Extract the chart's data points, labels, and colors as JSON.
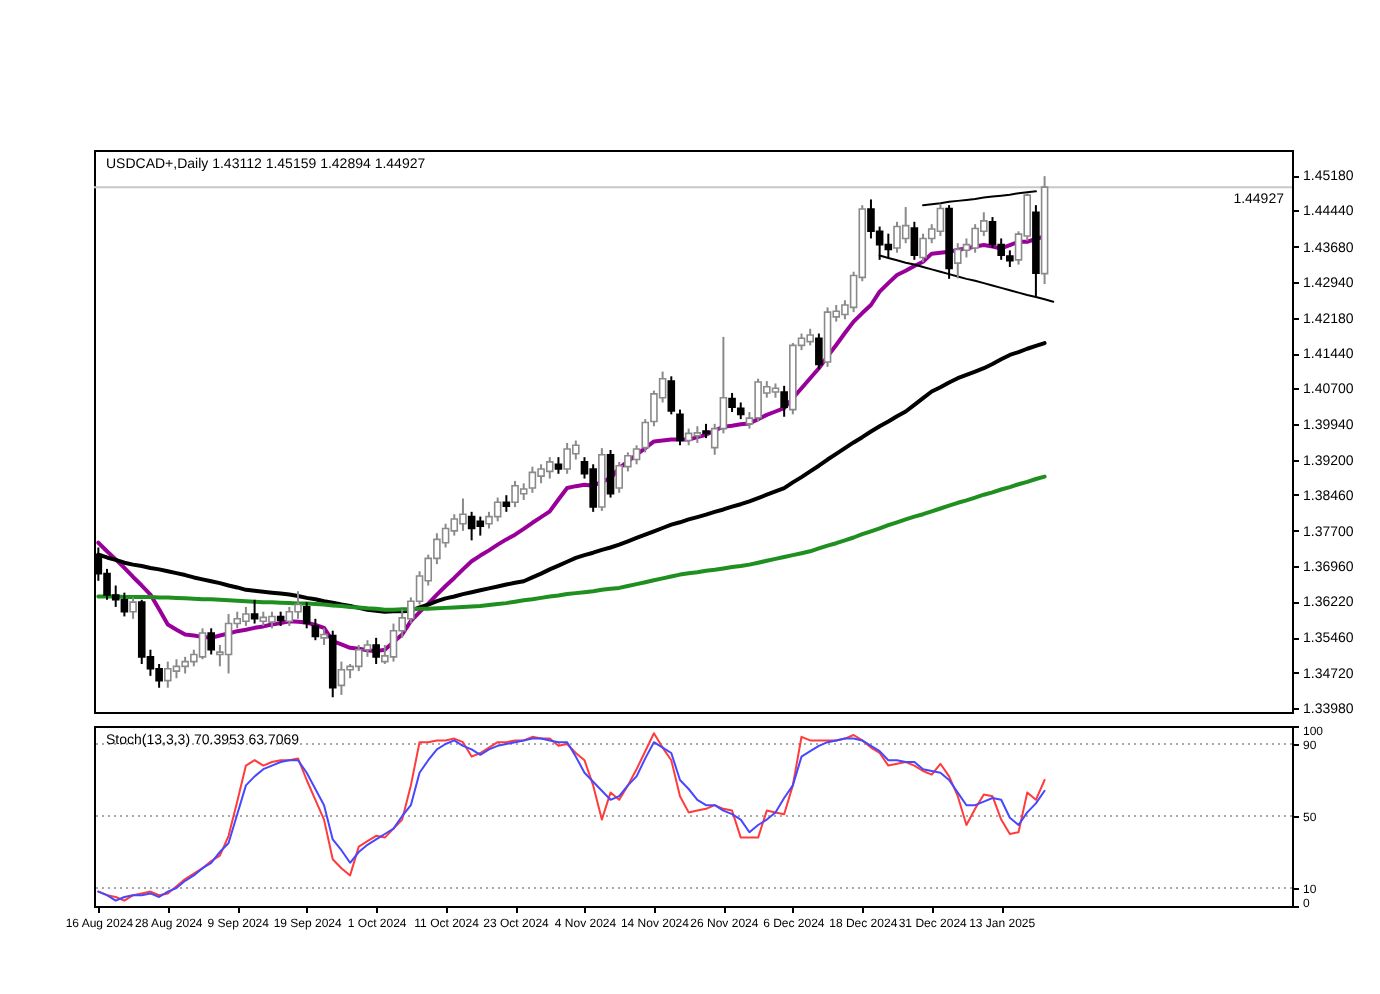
{
  "chart_data": [
    {
      "type": "candlestick",
      "title": "USDCAD+,Daily 1.43112 1.45159 1.42894 1.44927",
      "tick_labels": "y",
      "categories": [
        null,
        null,
        null,
        null,
        null,
        null,
        null,
        null,
        null,
        null,
        null,
        null,
        null,
        null,
        null,
        null,
        null,
        null,
        null,
        null,
        null,
        null,
        null,
        null,
        null,
        null,
        null,
        null,
        null,
        null,
        null,
        null,
        null,
        null,
        null,
        null,
        null,
        null,
        null,
        null,
        null,
        null,
        null,
        null,
        null,
        null,
        null,
        null,
        null,
        null,
        null,
        null,
        null,
        null,
        null,
        null,
        null,
        null,
        null,
        null,
        null,
        null,
        null,
        null,
        null,
        null,
        null,
        null,
        null,
        null,
        null,
        null,
        null,
        null,
        null,
        null,
        null,
        null,
        null,
        null,
        null,
        null,
        null,
        null,
        null,
        null,
        null,
        null,
        null,
        null,
        null,
        null,
        null,
        null,
        null,
        null,
        null,
        null,
        null,
        null,
        null,
        null,
        null,
        null,
        null,
        null,
        null,
        null,
        null,
        null,
        null,
        null,
        null,
        null,
        null,
        null,
        null,
        null,
        null,
        null,
        null,
        null,
        null,
        null,
        null,
        null,
        null,
        null,
        null,
        null,
        null,
        null,
        null,
        null,
        null,
        null,
        null,
        null
      ],
      "ohlc": [
        [
          1.372,
          1.3735,
          1.3665,
          1.368
        ],
        [
          1.368,
          1.369,
          1.3625,
          1.3635
        ],
        [
          1.3635,
          1.3655,
          1.361,
          1.3625
        ],
        [
          1.3625,
          1.364,
          1.359,
          1.36
        ],
        [
          1.36,
          1.363,
          1.3585,
          1.362
        ],
        [
          1.362,
          1.3625,
          1.349,
          1.3505
        ],
        [
          1.3505,
          1.352,
          1.3465,
          1.348
        ],
        [
          1.348,
          1.349,
          1.344,
          1.3455
        ],
        [
          1.3455,
          1.3495,
          1.344,
          1.348
        ],
        [
          1.3475,
          1.35,
          1.346,
          1.3485
        ],
        [
          1.3485,
          1.3505,
          1.347,
          1.3495
        ],
        [
          1.3495,
          1.352,
          1.3485,
          1.351
        ],
        [
          1.3505,
          1.3565,
          1.35,
          1.3555
        ],
        [
          1.3555,
          1.3565,
          1.351,
          1.352
        ],
        [
          1.351,
          1.353,
          1.3485,
          1.3515
        ],
        [
          1.351,
          1.3595,
          1.347,
          1.3575
        ],
        [
          1.3575,
          1.36,
          1.3565,
          1.3585
        ],
        [
          1.358,
          1.361,
          1.357,
          1.3595
        ],
        [
          1.3595,
          1.3625,
          1.3575,
          1.3585
        ],
        [
          1.358,
          1.36,
          1.357,
          1.3588
        ],
        [
          1.3578,
          1.36,
          1.3565,
          1.359
        ],
        [
          1.359,
          1.36,
          1.357,
          1.3582
        ],
        [
          1.358,
          1.361,
          1.357,
          1.36
        ],
        [
          1.36,
          1.3643,
          1.3585,
          1.3615
        ],
        [
          1.361,
          1.362,
          1.3565,
          1.3575
        ],
        [
          1.357,
          1.3585,
          1.354,
          1.3548
        ],
        [
          1.3545,
          1.3565,
          1.353,
          1.3552
        ],
        [
          1.355,
          1.356,
          1.342,
          1.344
        ],
        [
          1.3445,
          1.3495,
          1.3425,
          1.3478
        ],
        [
          1.3478,
          1.349,
          1.346,
          1.3485
        ],
        [
          1.3485,
          1.353,
          1.3475,
          1.352
        ],
        [
          1.352,
          1.354,
          1.3505,
          1.353
        ],
        [
          1.353,
          1.3545,
          1.349,
          1.3505
        ],
        [
          1.3495,
          1.353,
          1.349,
          1.3507
        ],
        [
          1.3505,
          1.3575,
          1.3495,
          1.356
        ],
        [
          1.356,
          1.3605,
          1.3545,
          1.3587
        ],
        [
          1.3585,
          1.363,
          1.3575,
          1.3622
        ],
        [
          1.3622,
          1.3685,
          1.3615,
          1.3675
        ],
        [
          1.3665,
          1.372,
          1.3655,
          1.3712
        ],
        [
          1.3712,
          1.3765,
          1.37,
          1.3752
        ],
        [
          1.3745,
          1.3785,
          1.3735,
          1.3775
        ],
        [
          1.377,
          1.3805,
          1.376,
          1.3795
        ],
        [
          1.3785,
          1.3838,
          1.377,
          1.3805
        ],
        [
          1.38,
          1.381,
          1.375,
          1.3775
        ],
        [
          1.379,
          1.38,
          1.376,
          1.378
        ],
        [
          1.3785,
          1.381,
          1.3775,
          1.38
        ],
        [
          1.38,
          1.384,
          1.379,
          1.383
        ],
        [
          1.383,
          1.3845,
          1.381,
          1.3822
        ],
        [
          1.383,
          1.3875,
          1.382,
          1.3865
        ],
        [
          1.3848,
          1.387,
          1.3835,
          1.3858
        ],
        [
          1.386,
          1.3905,
          1.385,
          1.3893
        ],
        [
          1.3885,
          1.391,
          1.387,
          1.39
        ],
        [
          1.3895,
          1.3925,
          1.388,
          1.3915
        ],
        [
          1.391,
          1.3925,
          1.389,
          1.39
        ],
        [
          1.39,
          1.3955,
          1.389,
          1.3942
        ],
        [
          1.3932,
          1.396,
          1.392,
          1.395
        ],
        [
          1.3915,
          1.3925,
          1.388,
          1.389
        ],
        [
          1.39,
          1.391,
          1.381,
          1.382
        ],
        [
          1.382,
          1.3944,
          1.3812,
          1.393
        ],
        [
          1.393,
          1.394,
          1.384,
          1.3848
        ],
        [
          1.386,
          1.3915,
          1.385,
          1.3907
        ],
        [
          1.3905,
          1.3935,
          1.3895,
          1.3928
        ],
        [
          1.392,
          1.395,
          1.391,
          1.3942
        ],
        [
          1.3945,
          1.4005,
          1.3935,
          1.3998
        ],
        [
          1.4,
          1.4065,
          1.399,
          1.4058
        ],
        [
          1.405,
          1.4105,
          1.404,
          1.409
        ],
        [
          1.4085,
          1.4095,
          1.4015,
          1.4022
        ],
        [
          1.4015,
          1.4025,
          1.395,
          1.396
        ],
        [
          1.396,
          1.3985,
          1.395,
          1.3975
        ],
        [
          1.397,
          1.399,
          1.3955,
          1.3976
        ],
        [
          1.398,
          1.3995,
          1.3965,
          1.3975
        ],
        [
          1.3945,
          1.3995,
          1.393,
          1.3985
        ],
        [
          1.3985,
          1.4178,
          1.3975,
          1.405
        ],
        [
          1.4048,
          1.406,
          1.402,
          1.403
        ],
        [
          1.4028,
          1.404,
          1.4005,
          1.4015
        ],
        [
          1.3995,
          1.402,
          1.3985,
          1.4007
        ],
        [
          1.4008,
          1.409,
          1.4,
          1.4083
        ],
        [
          1.406,
          1.4085,
          1.405,
          1.4073
        ],
        [
          1.4062,
          1.408,
          1.405,
          1.407
        ],
        [
          1.4062,
          1.4075,
          1.401,
          1.403
        ],
        [
          1.4025,
          1.4165,
          1.4015,
          1.416
        ],
        [
          1.416,
          1.4185,
          1.415,
          1.4175
        ],
        [
          1.4168,
          1.4195,
          1.416,
          1.4182
        ],
        [
          1.4175,
          1.4185,
          1.411,
          1.412
        ],
        [
          1.4125,
          1.424,
          1.4115,
          1.423
        ],
        [
          1.422,
          1.4245,
          1.421,
          1.4232
        ],
        [
          1.4225,
          1.4255,
          1.4215,
          1.4245
        ],
        [
          1.424,
          1.4315,
          1.423,
          1.4307
        ],
        [
          1.4303,
          1.4455,
          1.4295,
          1.4447
        ],
        [
          1.4447,
          1.4467,
          1.4385,
          1.44
        ],
        [
          1.44,
          1.441,
          1.434,
          1.4372
        ],
        [
          1.4372,
          1.4395,
          1.4345,
          1.4362
        ],
        [
          1.4365,
          1.442,
          1.4355,
          1.441
        ],
        [
          1.4385,
          1.4451,
          1.4375,
          1.4412
        ],
        [
          1.4407,
          1.442,
          1.434,
          1.435
        ],
        [
          1.4345,
          1.4395,
          1.4335,
          1.4385
        ],
        [
          1.4385,
          1.4415,
          1.4375,
          1.4405
        ],
        [
          1.44,
          1.4458,
          1.439,
          1.4448
        ],
        [
          1.4448,
          1.4455,
          1.43,
          1.4322
        ],
        [
          1.4333,
          1.4375,
          1.4301,
          1.4362
        ],
        [
          1.436,
          1.4385,
          1.4345,
          1.4372
        ],
        [
          1.4365,
          1.4415,
          1.4355,
          1.4406
        ],
        [
          1.44,
          1.444,
          1.439,
          1.4422
        ],
        [
          1.442,
          1.443,
          1.4365,
          1.4373
        ],
        [
          1.4372,
          1.4385,
          1.434,
          1.435
        ],
        [
          1.4348,
          1.436,
          1.4325,
          1.4338
        ],
        [
          1.434,
          1.44,
          1.433,
          1.4394
        ],
        [
          1.439,
          1.448,
          1.438,
          1.4476
        ],
        [
          1.444,
          1.4455,
          1.4262,
          1.4312
        ],
        [
          1.4311,
          1.4516,
          1.4289,
          1.4493
        ],
        null,
        null,
        null,
        null,
        null,
        null,
        null,
        null,
        null,
        null,
        null,
        null,
        null,
        null,
        null,
        null,
        null,
        null,
        null,
        null,
        null,
        null,
        null,
        null,
        null,
        null,
        null,
        null
      ],
      "series": [
        {
          "type": "line",
          "color": "#990099",
          "values": [
            1.3745,
            1.3727,
            1.371,
            1.3692,
            1.3673,
            1.3655,
            1.3636,
            1.3605,
            1.3573,
            1.3562,
            1.3552,
            1.355,
            1.3547,
            1.3545,
            1.355,
            1.3554,
            1.3559,
            1.3562,
            1.3566,
            1.3569,
            1.3573,
            1.3576,
            1.358,
            1.3579,
            1.3577,
            1.3572,
            1.3566,
            1.3538,
            1.3531,
            1.3524,
            1.3522,
            1.3519,
            1.3517,
            1.352,
            1.3536,
            1.3552,
            1.358,
            1.3599,
            1.3617,
            1.3636,
            1.3654,
            1.3671,
            1.3689,
            1.3706,
            1.3718,
            1.3729,
            1.3741,
            1.3752,
            1.3762,
            1.3774,
            1.3787,
            1.3799,
            1.3811,
            1.3836,
            1.386,
            1.3864,
            1.3867,
            1.3865,
            1.3873,
            1.3881,
            1.3902,
            1.3916,
            1.393,
            1.3944,
            1.3958,
            1.396,
            1.3962,
            1.3962,
            1.3962,
            1.3967,
            1.3972,
            1.3981,
            1.3989,
            1.3991,
            1.3994,
            1.3996,
            1.4005,
            1.4014,
            1.4021,
            1.4028,
            1.4049,
            1.407,
            1.4091,
            1.4112,
            1.4137,
            1.4161,
            1.4186,
            1.421,
            1.4228,
            1.4245,
            1.4273,
            1.4291,
            1.4308,
            1.4317,
            1.4327,
            1.4336,
            1.4353,
            1.4355,
            1.4357,
            1.4361,
            1.4364,
            1.4368,
            1.4371,
            1.4368,
            1.4364,
            1.4371,
            1.4378,
            1.4378,
            1.4384,
            1.4389,
            null,
            null,
            null,
            null,
            null,
            null,
            null,
            null,
            null,
            null,
            null,
            null,
            null,
            null,
            null,
            null,
            null,
            null,
            null,
            null,
            null,
            null,
            null,
            null,
            null,
            null,
            null,
            null
          ]
        },
        {
          "type": "line",
          "color": "#000000",
          "values": [
            1.372,
            1.3714,
            1.3709,
            1.3703,
            1.3699,
            1.3696,
            1.3692,
            1.3689,
            1.3685,
            1.3681,
            1.3677,
            1.3672,
            1.3668,
            1.3664,
            1.366,
            1.3655,
            1.3651,
            1.3646,
            1.3644,
            1.3642,
            1.364,
            1.3638,
            1.3636,
            1.3633,
            1.3629,
            1.3626,
            1.3622,
            1.3619,
            1.3615,
            1.3612,
            1.3608,
            1.3604,
            1.3602,
            1.36,
            1.3601,
            1.3601,
            1.3602,
            1.3609,
            1.3615,
            1.3622,
            1.3628,
            1.3632,
            1.3637,
            1.3641,
            1.3645,
            1.3649,
            1.3653,
            1.3657,
            1.3661,
            1.3664,
            1.3672,
            1.368,
            1.3689,
            1.3697,
            1.3705,
            1.3713,
            1.3719,
            1.3724,
            1.373,
            1.3735,
            1.3741,
            1.3748,
            1.3755,
            1.3762,
            1.3769,
            1.3776,
            1.3783,
            1.3788,
            1.3794,
            1.3799,
            1.3804,
            1.381,
            1.3815,
            1.3821,
            1.3826,
            1.3832,
            1.3839,
            1.3846,
            1.3853,
            1.386,
            1.3872,
            1.3883,
            1.3895,
            1.3907,
            1.392,
            1.3932,
            1.3944,
            1.3956,
            1.3967,
            1.3979,
            1.399,
            1.4,
            1.4011,
            1.4021,
            1.4035,
            1.4049,
            1.4063,
            1.4072,
            1.4082,
            1.4091,
            1.4098,
            1.4105,
            1.4112,
            1.4121,
            1.4131,
            1.414,
            1.4146,
            1.4153,
            1.4159,
            1.4165,
            null,
            null,
            null,
            null,
            null,
            null,
            null,
            null,
            null,
            null,
            null,
            null,
            null,
            null,
            null,
            null,
            null,
            null,
            null,
            null,
            null,
            null,
            null,
            null,
            null,
            null,
            null,
            null
          ]
        },
        {
          "type": "line",
          "color": "#1f8f1f",
          "values": [
            1.3632,
            1.3632,
            1.3632,
            1.3631,
            1.3631,
            1.3631,
            1.3631,
            1.363,
            1.363,
            1.3629,
            1.3628,
            1.3627,
            1.3626,
            1.3626,
            1.3625,
            1.3624,
            1.3623,
            1.3622,
            1.3621,
            1.362,
            1.362,
            1.3619,
            1.3618,
            1.3617,
            1.3617,
            1.3616,
            1.3615,
            1.3613,
            1.3612,
            1.361,
            1.3609,
            1.3607,
            1.3606,
            1.3604,
            1.3604,
            1.3605,
            1.3605,
            1.3606,
            1.3606,
            1.3607,
            1.3608,
            1.3609,
            1.361,
            1.3611,
            1.3612,
            1.3614,
            1.3616,
            1.3618,
            1.3621,
            1.3624,
            1.3626,
            1.3629,
            1.3632,
            1.3634,
            1.3637,
            1.3639,
            1.3641,
            1.3643,
            1.3646,
            1.3648,
            1.365,
            1.3654,
            1.3658,
            1.3662,
            1.3666,
            1.367,
            1.3674,
            1.3678,
            1.3681,
            1.3683,
            1.3686,
            1.3688,
            1.3691,
            1.3694,
            1.3696,
            1.3699,
            1.3703,
            1.3707,
            1.3711,
            1.3715,
            1.3719,
            1.3723,
            1.3727,
            1.3733,
            1.3739,
            1.3744,
            1.375,
            1.3756,
            1.3763,
            1.3769,
            1.3775,
            1.3782,
            1.3788,
            1.3794,
            1.38,
            1.3805,
            1.3811,
            1.3817,
            1.3823,
            1.3829,
            1.3834,
            1.384,
            1.3846,
            1.3851,
            1.3857,
            1.3862,
            1.3868,
            1.3873,
            1.3879,
            1.3884,
            null,
            null,
            null,
            null,
            null,
            null,
            null,
            null,
            null,
            null,
            null,
            null,
            null,
            null,
            null,
            null,
            null,
            null,
            null,
            null,
            null,
            null,
            null,
            null,
            null,
            null,
            null,
            null
          ]
        },
        {
          "type": "line",
          "color": "#000000",
          "values": [
            null,
            null,
            null,
            null,
            null,
            null,
            null,
            null,
            null,
            null,
            null,
            null,
            null,
            null,
            null,
            null,
            null,
            null,
            null,
            null,
            null,
            null,
            null,
            null,
            null,
            null,
            null,
            null,
            null,
            null,
            null,
            null,
            null,
            null,
            null,
            null,
            null,
            null,
            null,
            null,
            null,
            null,
            null,
            null,
            null,
            null,
            null,
            null,
            null,
            null,
            null,
            null,
            null,
            null,
            null,
            null,
            null,
            null,
            null,
            null,
            null,
            null,
            null,
            null,
            null,
            null,
            null,
            null,
            null,
            null,
            null,
            null,
            null,
            null,
            null,
            null,
            null,
            null,
            null,
            null,
            null,
            null,
            null,
            null,
            null,
            null,
            null,
            null,
            null,
            null,
            null,
            null,
            null,
            null,
            null,
            1.4455,
            1.4457,
            1.4459,
            1.4462,
            1.4464,
            1.4466,
            1.4468,
            1.4471,
            1.4473,
            1.4475,
            1.4477,
            1.448,
            1.4482,
            1.4484,
            null,
            null,
            null,
            null,
            null,
            null,
            null,
            null,
            null,
            null,
            null,
            null,
            null,
            null,
            null,
            null,
            null,
            null,
            null,
            null,
            null,
            null,
            null,
            null,
            null,
            null,
            null,
            null,
            null
          ]
        },
        {
          "type": "line",
          "color": "#000000",
          "values": [
            null,
            null,
            null,
            null,
            null,
            null,
            null,
            null,
            null,
            null,
            null,
            null,
            null,
            null,
            null,
            null,
            null,
            null,
            null,
            null,
            null,
            null,
            null,
            null,
            null,
            null,
            null,
            null,
            null,
            null,
            null,
            null,
            null,
            null,
            null,
            null,
            null,
            null,
            null,
            null,
            null,
            null,
            null,
            null,
            null,
            null,
            null,
            null,
            null,
            null,
            null,
            null,
            null,
            null,
            null,
            null,
            null,
            null,
            null,
            null,
            null,
            null,
            null,
            null,
            null,
            null,
            null,
            null,
            null,
            null,
            null,
            null,
            null,
            null,
            null,
            null,
            null,
            null,
            null,
            null,
            null,
            null,
            null,
            null,
            null,
            null,
            null,
            null,
            null,
            null,
            1.4349,
            1.4344,
            1.4339,
            1.4334,
            1.433,
            1.4325,
            1.432,
            1.4315,
            1.431,
            1.4305,
            1.43,
            1.4296,
            1.4291,
            1.4286,
            1.4281,
            1.4276,
            1.4271,
            1.4266,
            1.4262,
            1.4257,
            1.4252,
            null,
            null,
            null,
            null,
            null,
            null,
            null,
            null,
            null,
            null,
            null,
            null,
            null,
            null,
            null,
            null,
            null,
            null,
            null,
            null,
            null,
            null,
            null,
            null,
            null,
            null,
            null
          ]
        }
      ],
      "ylim": [
        1.3389,
        1.4571
      ],
      "yticks": [
        {
          "value": 1.4518,
          "label": "1.45180"
        },
        {
          "value": 1.4444,
          "label": "1.44440"
        },
        {
          "value": 1.4368,
          "label": "1.43680"
        },
        {
          "value": 1.4294,
          "label": "1.42940"
        },
        {
          "value": 1.4218,
          "label": "1.42180"
        },
        {
          "value": 1.4144,
          "label": "1.41440"
        },
        {
          "value": 1.407,
          "label": "1.40700"
        },
        {
          "value": 1.3994,
          "label": "1.39940"
        },
        {
          "value": 1.392,
          "label": "1.39200"
        },
        {
          "value": 1.3846,
          "label": "1.38460"
        },
        {
          "value": 1.377,
          "label": "1.37700"
        },
        {
          "value": 1.3696,
          "label": "1.36960"
        },
        {
          "value": 1.3622,
          "label": "1.36220"
        },
        {
          "value": 1.3546,
          "label": "1.35460"
        },
        {
          "value": 1.3472,
          "label": "1.34720"
        },
        {
          "value": 1.3398,
          "label": "1.33980"
        }
      ],
      "ref_lines": [
        {
          "axis": "y",
          "value": 1.44927,
          "label": "1.44927",
          "color": "#c8c8c8"
        }
      ]
    },
    {
      "type": "line",
      "title": "Stoch(13,3,3) 70.3953 63.7069",
      "categories": [
        "16 Aug 2024",
        null,
        null,
        null,
        null,
        null,
        null,
        null,
        "28 Aug 2024",
        null,
        null,
        null,
        null,
        null,
        null,
        null,
        "9 Sep 2024",
        null,
        null,
        null,
        null,
        null,
        null,
        null,
        "19 Sep 2024",
        null,
        null,
        null,
        null,
        null,
        null,
        null,
        "1 Oct 2024",
        null,
        null,
        null,
        null,
        null,
        null,
        null,
        "11 Oct 2024",
        null,
        null,
        null,
        null,
        null,
        null,
        null,
        "23 Oct 2024",
        null,
        null,
        null,
        null,
        null,
        null,
        null,
        "4 Nov 2024",
        null,
        null,
        null,
        null,
        null,
        null,
        null,
        "14 Nov 2024",
        null,
        null,
        null,
        null,
        null,
        null,
        null,
        "26 Nov 2024",
        null,
        null,
        null,
        null,
        null,
        null,
        null,
        "6 Dec 2024",
        null,
        null,
        null,
        null,
        null,
        null,
        null,
        "18 Dec 2024",
        null,
        null,
        null,
        null,
        null,
        null,
        null,
        "31 Dec 2024",
        null,
        null,
        null,
        null,
        null,
        null,
        null,
        "13 Jan 2025",
        null,
        null,
        null,
        null,
        null,
        null,
        null,
        null,
        null,
        null,
        null,
        null,
        null,
        null,
        null,
        null,
        null,
        null,
        null,
        null,
        null,
        null,
        null,
        null,
        null,
        null,
        null,
        null,
        null,
        null,
        null,
        null,
        null
      ],
      "series": [
        {
          "color": "#ff3b3b",
          "values": [
            8,
            6,
            5,
            3,
            6,
            7,
            8,
            6,
            7,
            11,
            15,
            18,
            21,
            25,
            28,
            39,
            58,
            78,
            81,
            78,
            80,
            81,
            81,
            82,
            70,
            59,
            48,
            26,
            21,
            17,
            33,
            36,
            39,
            38,
            43,
            48,
            67,
            91,
            91,
            92,
            92,
            93,
            91,
            83,
            85,
            88,
            91,
            91,
            92,
            92,
            94,
            93,
            93,
            89,
            90,
            85,
            81,
            67,
            48,
            63,
            59,
            67,
            76,
            86,
            96,
            88,
            81,
            61,
            52,
            53,
            54,
            56,
            54,
            53,
            38,
            38,
            38,
            53,
            52,
            51,
            67,
            94,
            92,
            92,
            92,
            92,
            93,
            95,
            92,
            88,
            85,
            78,
            79,
            80,
            78,
            75,
            73,
            79,
            72,
            61,
            45,
            54,
            62,
            61,
            48,
            40,
            41,
            63,
            59,
            70,
            null,
            null,
            null,
            null,
            null,
            null,
            null,
            null,
            null,
            null,
            null,
            null,
            null,
            null,
            null,
            null,
            null,
            null,
            null,
            null,
            null,
            null,
            null,
            null,
            null,
            null,
            null,
            null
          ]
        },
        {
          "color": "#4747ff",
          "values": [
            8,
            6,
            3,
            5,
            6,
            6,
            7,
            5,
            8,
            10,
            14,
            17,
            21,
            24,
            30,
            35,
            51,
            67,
            72,
            76,
            78,
            80,
            81,
            81,
            74,
            65,
            56,
            37,
            31,
            24,
            30,
            34,
            37,
            40,
            43,
            50,
            56,
            74,
            81,
            87,
            90,
            92,
            89,
            87,
            84,
            87,
            89,
            90,
            91,
            92,
            93,
            93,
            92,
            91,
            91,
            83,
            74,
            69,
            64,
            59,
            61,
            67,
            72,
            82,
            91,
            88,
            85,
            70,
            65,
            59,
            56,
            56,
            53,
            51,
            48,
            41,
            45,
            48,
            52,
            60,
            67,
            83,
            86,
            89,
            91,
            92,
            93,
            93,
            92,
            89,
            86,
            81,
            81,
            80,
            80,
            76,
            75,
            74,
            70,
            63,
            56,
            56,
            58,
            60,
            59,
            49,
            45,
            52,
            57,
            64,
            null,
            null,
            null,
            null,
            null,
            null,
            null,
            null,
            null,
            null,
            null,
            null,
            null,
            null,
            null,
            null,
            null,
            null,
            null,
            null,
            null,
            null,
            null,
            null,
            null,
            null,
            null,
            null
          ]
        }
      ],
      "ylim": [
        0,
        100
      ],
      "yticks": [
        0,
        10,
        50,
        90,
        100
      ],
      "ref_lines": [
        {
          "axis": "y",
          "value": 90,
          "color": "#a8a8a8",
          "line_style": "dotted"
        },
        {
          "axis": "y",
          "value": 50,
          "color": "#a8a8a8",
          "line_style": "dotted"
        },
        {
          "axis": "y",
          "value": 10,
          "color": "#a8a8a8",
          "line_style": "dotted"
        }
      ]
    }
  ]
}
